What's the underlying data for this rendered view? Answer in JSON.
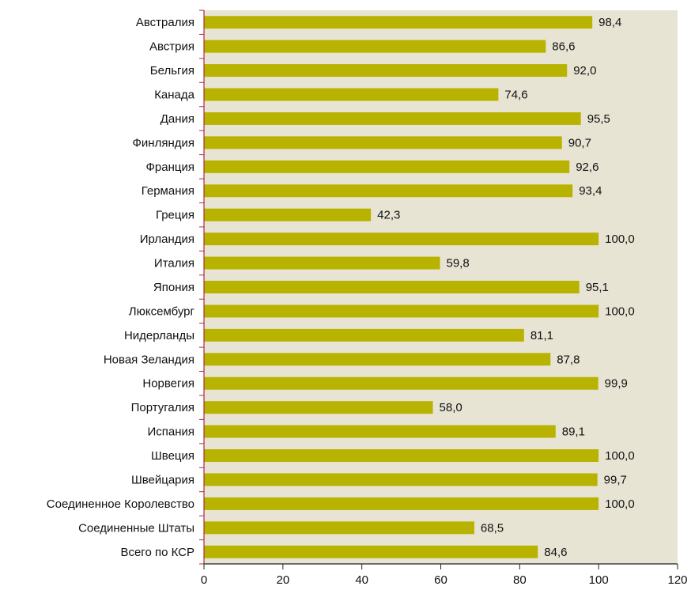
{
  "chart_data": {
    "type": "bar",
    "orientation": "horizontal",
    "categories": [
      "Австралия",
      "Австрия",
      "Бельгия",
      "Канада",
      "Дания",
      "Финляндия",
      "Франция",
      "Германия",
      "Греция",
      "Ирландия",
      "Италия",
      "Япония",
      "Люксембург",
      "Нидерланды",
      "Новая Зеландия",
      "Норвегия",
      "Португалия",
      "Испания",
      "Швеция",
      "Швейцария",
      "Соединенное Королевство",
      "Соединенные Штаты",
      "Всего по КСР"
    ],
    "values": [
      98.4,
      86.6,
      92.0,
      74.6,
      95.5,
      90.7,
      92.6,
      93.4,
      42.3,
      100.0,
      59.8,
      95.1,
      100.0,
      81.1,
      87.8,
      99.9,
      58.0,
      89.1,
      100.0,
      99.7,
      100.0,
      68.5,
      84.6
    ],
    "value_labels": [
      "98,4",
      "86,6",
      "92,0",
      "74,6",
      "95,5",
      "90,7",
      "92,6",
      "93,4",
      "42,3",
      "100,0",
      "59,8",
      "95,1",
      "100,0",
      "81,1",
      "87,8",
      "99,9",
      "58,0",
      "89,1",
      "100,0",
      "99,7",
      "100,0",
      "68,5",
      "84,6"
    ],
    "color": "#b8b300",
    "xlim": [
      0,
      120
    ],
    "xticks": [
      0,
      20,
      40,
      60,
      80,
      100,
      120
    ]
  }
}
